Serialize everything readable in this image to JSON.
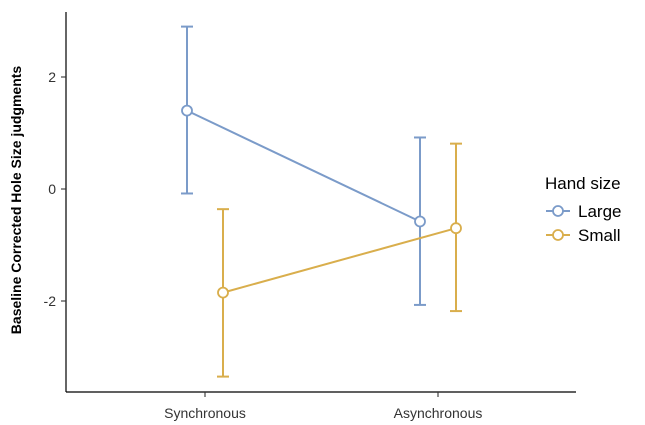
{
  "chart_data": {
    "type": "line",
    "title": "",
    "xlabel": "",
    "ylabel": "Baseline Corrected Hole Size judgments",
    "categories": [
      "Synchronous",
      "Asynchronous"
    ],
    "ylim": [
      -3.6,
      3.2
    ],
    "yticks": [
      -2,
      0,
      2
    ],
    "grid": false,
    "legend": {
      "title": "Hand size",
      "placement": "right"
    },
    "series": [
      {
        "name": "Large",
        "color": "#7b9bc9",
        "values": [
          1.4,
          -0.58
        ],
        "error_low": [
          -0.08,
          -2.07
        ],
        "error_high": [
          2.9,
          0.92
        ]
      },
      {
        "name": "Small",
        "color": "#d9ae4c",
        "values": [
          -1.85,
          -0.7
        ],
        "error_low": [
          -3.35,
          -2.18
        ],
        "error_high": [
          -0.36,
          0.81
        ]
      }
    ]
  }
}
